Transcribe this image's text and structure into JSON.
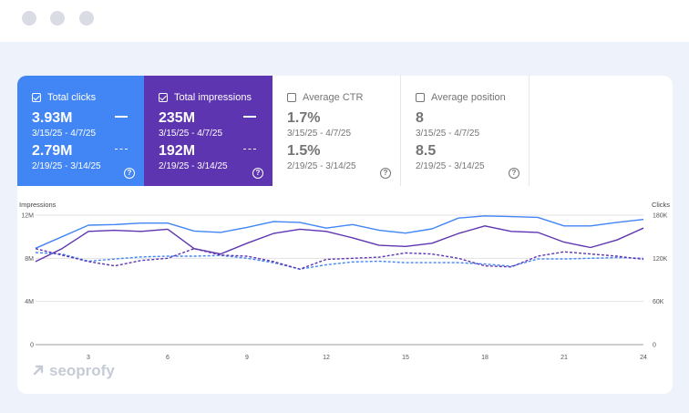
{
  "window": {
    "controls": [
      "close",
      "minimize",
      "maximize"
    ]
  },
  "metrics": [
    {
      "label": "Total clicks",
      "checked": true,
      "current": "3.93M",
      "current_range": "3/15/25 - 4/7/25",
      "previous": "2.79M",
      "previous_range": "2/19/25 - 3/14/25",
      "color": "#4285f4"
    },
    {
      "label": "Total impressions",
      "checked": true,
      "current": "235M",
      "current_range": "3/15/25 - 4/7/25",
      "previous": "192M",
      "previous_range": "2/19/25 - 3/14/25",
      "color": "#5e35b1"
    },
    {
      "label": "Average CTR",
      "checked": false,
      "current": "1.7%",
      "current_range": "3/15/25 - 4/7/25",
      "previous": "1.5%",
      "previous_range": "2/19/25 - 3/14/25"
    },
    {
      "label": "Average position",
      "checked": false,
      "current": "8",
      "current_range": "3/15/25 - 4/7/25",
      "previous": "8.5",
      "previous_range": "2/19/25 - 3/14/25"
    }
  ],
  "help_symbol": "?",
  "chart_data": {
    "type": "line",
    "left_axis_label": "Impressions",
    "right_axis_label": "Clicks",
    "left_ticks": [
      "12M",
      "8M",
      "4M",
      "0"
    ],
    "left_tick_values": [
      12000000,
      8000000,
      4000000,
      0
    ],
    "right_ticks": [
      "180K",
      "120K",
      "60K",
      "0"
    ],
    "right_tick_values": [
      180000,
      120000,
      60000,
      0
    ],
    "x_ticks": [
      "3",
      "6",
      "9",
      "12",
      "15",
      "18",
      "21",
      "24"
    ],
    "x_tick_values": [
      3,
      6,
      9,
      12,
      15,
      18,
      21,
      24
    ],
    "x": [
      1,
      2,
      3,
      4,
      5,
      6,
      7,
      8,
      9,
      10,
      11,
      12,
      13,
      14,
      15,
      16,
      17,
      18,
      19,
      20,
      21,
      22,
      23,
      24
    ],
    "left_range": [
      0,
      12000000
    ],
    "right_range": [
      0,
      180000
    ],
    "grid": true,
    "series": [
      {
        "axis": "right",
        "style": "solid",
        "color": "#4285f4",
        "values": [
          134000,
          150000,
          166000,
          167000,
          169000,
          169000,
          158000,
          156000,
          163000,
          171000,
          170000,
          162000,
          167000,
          159000,
          155000,
          161000,
          176000,
          179000,
          178000,
          177000,
          165000,
          165000,
          170000,
          174000
        ]
      },
      {
        "axis": "left",
        "style": "solid",
        "color": "#5e35b1",
        "values": [
          7700000,
          8900000,
          10500000,
          10600000,
          10500000,
          10700000,
          8900000,
          8400000,
          9400000,
          10300000,
          10700000,
          10500000,
          9900000,
          9200000,
          9100000,
          9400000,
          10300000,
          11000000,
          10500000,
          10400000,
          9500000,
          9000000,
          9700000,
          10800000
        ]
      },
      {
        "axis": "right",
        "style": "dashed",
        "color": "#4285f4",
        "values": [
          128000,
          126000,
          116000,
          119000,
          122000,
          123000,
          123000,
          124000,
          120000,
          114000,
          105000,
          111000,
          115000,
          116000,
          114000,
          114000,
          114000,
          112000,
          109000,
          119000,
          119000,
          120000,
          121000,
          120000
        ]
      },
      {
        "axis": "left",
        "style": "dashed",
        "color": "#5e35b1",
        "values": [
          8900000,
          8300000,
          7700000,
          7300000,
          7800000,
          8000000,
          8900000,
          8300000,
          8200000,
          7700000,
          7000000,
          7900000,
          8000000,
          8100000,
          8500000,
          8400000,
          8000000,
          7300000,
          7200000,
          8200000,
          8600000,
          8400000,
          8200000,
          7900000
        ]
      }
    ]
  },
  "brand": {
    "name": "seoprofy"
  }
}
